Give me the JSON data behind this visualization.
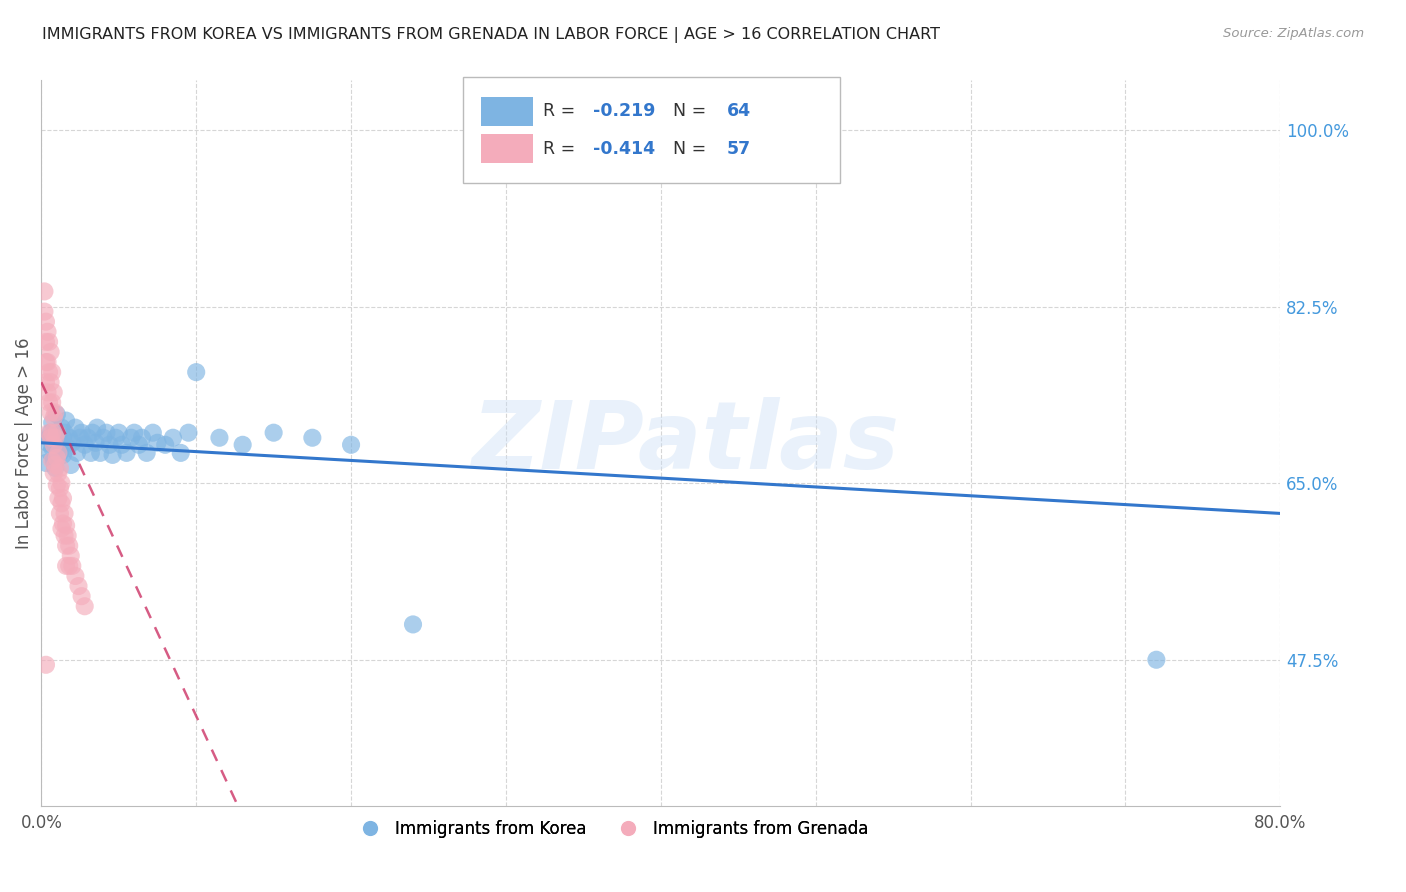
{
  "title": "IMMIGRANTS FROM KOREA VS IMMIGRANTS FROM GRENADA IN LABOR FORCE | AGE > 16 CORRELATION CHART",
  "source": "Source: ZipAtlas.com",
  "ylabel": "In Labor Force | Age > 16",
  "watermark": "ZIPatlas",
  "legend_korea": "Immigrants from Korea",
  "legend_grenada": "Immigrants from Grenada",
  "korea_R": -0.219,
  "korea_N": 64,
  "grenada_R": -0.414,
  "grenada_N": 57,
  "xlim": [
    0.0,
    0.8
  ],
  "ylim": [
    0.33,
    1.05
  ],
  "right_yticks": [
    0.475,
    0.65,
    0.825,
    1.0
  ],
  "right_yticklabels": [
    "47.5%",
    "65.0%",
    "82.5%",
    "100.0%"
  ],
  "background_color": "#ffffff",
  "grid_color": "#cccccc",
  "blue_color": "#7EB4E2",
  "pink_color": "#F4ACBB",
  "blue_line_color": "#3377CC",
  "pink_line_color": "#CC3366",
  "title_color": "#222222",
  "right_label_color": "#4499DD",
  "korea_x": [
    0.003,
    0.004,
    0.005,
    0.006,
    0.006,
    0.007,
    0.007,
    0.008,
    0.008,
    0.009,
    0.009,
    0.01,
    0.01,
    0.011,
    0.011,
    0.012,
    0.013,
    0.013,
    0.014,
    0.014,
    0.015,
    0.016,
    0.017,
    0.018,
    0.019,
    0.02,
    0.022,
    0.023,
    0.025,
    0.026,
    0.028,
    0.03,
    0.032,
    0.033,
    0.035,
    0.036,
    0.038,
    0.04,
    0.042,
    0.044,
    0.046,
    0.048,
    0.05,
    0.052,
    0.055,
    0.058,
    0.06,
    0.063,
    0.065,
    0.068,
    0.072,
    0.075,
    0.08,
    0.085,
    0.09,
    0.095,
    0.1,
    0.115,
    0.13,
    0.15,
    0.175,
    0.2,
    0.24,
    0.72
  ],
  "korea_y": [
    0.67,
    0.69,
    0.695,
    0.68,
    0.7,
    0.685,
    0.71,
    0.672,
    0.695,
    0.688,
    0.665,
    0.7,
    0.718,
    0.685,
    0.695,
    0.68,
    0.688,
    0.705,
    0.678,
    0.695,
    0.7,
    0.712,
    0.685,
    0.695,
    0.668,
    0.69,
    0.705,
    0.68,
    0.695,
    0.7,
    0.688,
    0.695,
    0.68,
    0.7,
    0.69,
    0.705,
    0.68,
    0.695,
    0.7,
    0.688,
    0.678,
    0.695,
    0.7,
    0.688,
    0.68,
    0.695,
    0.7,
    0.688,
    0.695,
    0.68,
    0.7,
    0.69,
    0.688,
    0.695,
    0.68,
    0.7,
    0.76,
    0.695,
    0.688,
    0.7,
    0.695,
    0.688,
    0.51,
    0.475
  ],
  "grenada_x": [
    0.002,
    0.002,
    0.003,
    0.003,
    0.003,
    0.003,
    0.004,
    0.004,
    0.004,
    0.005,
    0.005,
    0.005,
    0.005,
    0.006,
    0.006,
    0.006,
    0.006,
    0.007,
    0.007,
    0.007,
    0.007,
    0.008,
    0.008,
    0.008,
    0.008,
    0.009,
    0.009,
    0.009,
    0.01,
    0.01,
    0.01,
    0.011,
    0.011,
    0.011,
    0.012,
    0.012,
    0.012,
    0.013,
    0.013,
    0.013,
    0.014,
    0.014,
    0.015,
    0.015,
    0.016,
    0.016,
    0.016,
    0.017,
    0.018,
    0.018,
    0.019,
    0.02,
    0.022,
    0.024,
    0.026,
    0.028,
    0.003
  ],
  "grenada_y": [
    0.82,
    0.84,
    0.79,
    0.81,
    0.77,
    0.75,
    0.8,
    0.77,
    0.74,
    0.79,
    0.76,
    0.73,
    0.7,
    0.78,
    0.75,
    0.72,
    0.695,
    0.76,
    0.73,
    0.7,
    0.672,
    0.74,
    0.715,
    0.688,
    0.66,
    0.72,
    0.695,
    0.668,
    0.7,
    0.675,
    0.648,
    0.68,
    0.66,
    0.635,
    0.665,
    0.645,
    0.62,
    0.65,
    0.63,
    0.605,
    0.635,
    0.61,
    0.62,
    0.598,
    0.608,
    0.588,
    0.568,
    0.598,
    0.588,
    0.568,
    0.578,
    0.568,
    0.558,
    0.548,
    0.538,
    0.528,
    0.47
  ],
  "korea_trend_x0": 0.0,
  "korea_trend_y0": 0.69,
  "korea_trend_x1": 0.8,
  "korea_trend_y1": 0.62,
  "grenada_trend_x0": 0.0,
  "grenada_trend_y0": 0.75,
  "grenada_trend_x1": 0.13,
  "grenada_trend_y1": 0.32
}
